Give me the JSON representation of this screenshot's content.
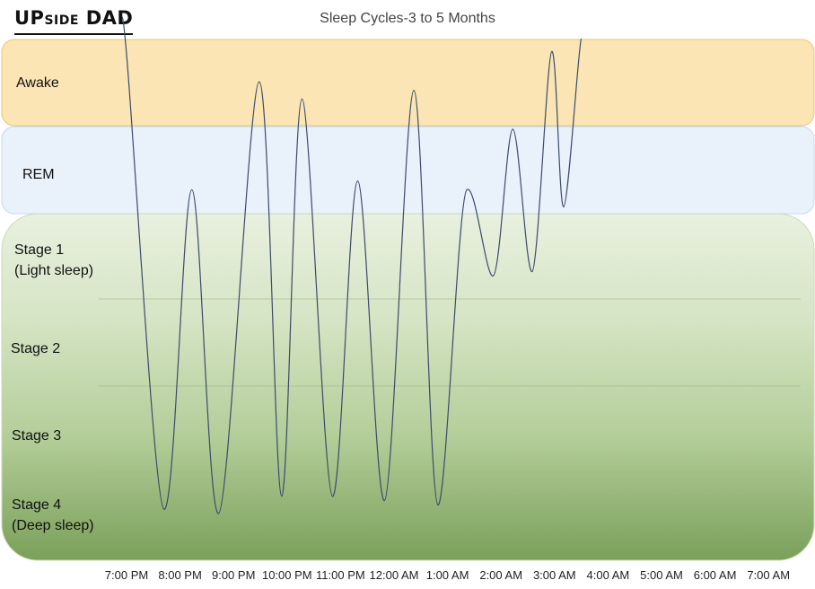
{
  "logo": {
    "text_main": "UP",
    "text_small": "SIDE",
    "text_end": " DAD"
  },
  "chart_data": {
    "type": "line",
    "title": "Sleep Cycles-3 to 5 Months",
    "xlabel": "",
    "ylabel": "",
    "categories": [
      "7:00 PM",
      "8:00 PM",
      "9:00 PM",
      "10:00 PM",
      "11:00 PM",
      "12:00 AM",
      "1:00 AM",
      "2:00 AM",
      "3:00 AM",
      "4:00 AM",
      "5:00 AM",
      "6:00 AM",
      "7:00 AM"
    ],
    "bands": [
      {
        "name": "Awake",
        "lines": [
          "Awake"
        ],
        "color": "#fbe5b4"
      },
      {
        "name": "REM",
        "lines": [
          "REM"
        ],
        "color": "#e9f1fb"
      },
      {
        "name": "Stage 1",
        "lines": [
          "Stage 1",
          "(Light sleep)"
        ],
        "color": "#e3eed9"
      },
      {
        "name": "Stage 2",
        "lines": [
          "Stage 2"
        ],
        "color": "#cddfba"
      },
      {
        "name": "Stage 3",
        "lines": [
          "Stage 3"
        ],
        "color": "#b1cc96"
      },
      {
        "name": "Stage 4",
        "lines": [
          "Stage 4",
          "(Deep sleep)"
        ],
        "color": "#7ea35f"
      }
    ],
    "y_scale": "sleep stage: 5 = Awake, 4 = REM, 3 = Stage 1, 2 = Stage 2, 1 = Stage 3, 0 = Stage 4",
    "ylim": [
      -0.1,
      5.9
    ],
    "series": [
      {
        "color": "#3b4b6b",
        "points": [
          [
            -0.08,
            5.75
          ],
          [
            0.7,
            0.05
          ],
          [
            1.22,
            3.75
          ],
          [
            1.72,
            0.0
          ],
          [
            2.48,
            5.0
          ],
          [
            2.9,
            0.2
          ],
          [
            3.28,
            4.8
          ],
          [
            3.85,
            0.2
          ],
          [
            4.32,
            3.85
          ],
          [
            4.82,
            0.15
          ],
          [
            5.37,
            4.9
          ],
          [
            5.82,
            0.1
          ],
          [
            6.36,
            3.75
          ],
          [
            6.85,
            2.75
          ],
          [
            7.22,
            4.45
          ],
          [
            7.58,
            2.8
          ],
          [
            7.95,
            5.35
          ],
          [
            8.17,
            3.55
          ],
          [
            8.5,
            5.5
          ]
        ]
      }
    ],
    "grid": "horizontal lines between sleep stages"
  }
}
